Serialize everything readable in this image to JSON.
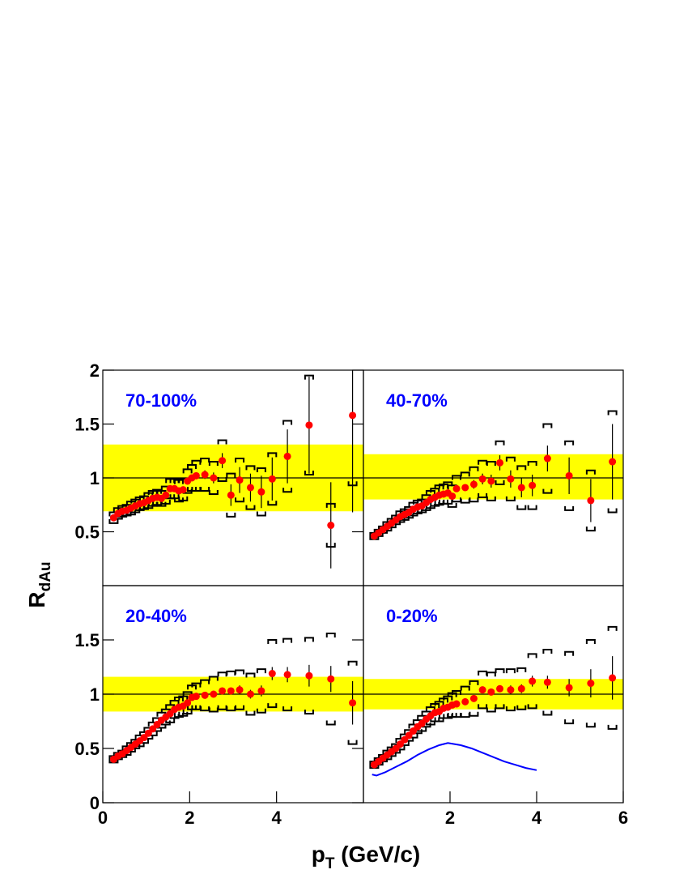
{
  "chart_data": {
    "type": "scatter",
    "x_label": {
      "main": "p",
      "sub": "T",
      "rest": " (GeV/c)"
    },
    "y_label": {
      "main": "R",
      "sub": "dAu"
    },
    "point_color": "#ff0000",
    "band_color": "#ffff00",
    "label_color": "#0000ff",
    "ref_line": 1,
    "panels": [
      {
        "label": "70-100%",
        "xlim": [
          0,
          6
        ],
        "ylim": [
          0,
          2
        ],
        "xticks": [],
        "yticks": [
          0.5,
          1,
          1.5,
          2
        ],
        "band": [
          0.69,
          1.31
        ],
        "x": [
          0.25,
          0.35,
          0.45,
          0.55,
          0.65,
          0.75,
          0.85,
          0.95,
          1.05,
          1.15,
          1.25,
          1.35,
          1.45,
          1.55,
          1.65,
          1.75,
          1.85,
          1.95,
          2.05,
          2.15,
          2.35,
          2.55,
          2.75,
          2.95,
          3.15,
          3.4,
          3.65,
          3.9,
          4.25,
          4.75,
          5.25,
          5.75
        ],
        "values": [
          0.63,
          0.67,
          0.69,
          0.7,
          0.72,
          0.74,
          0.76,
          0.77,
          0.79,
          0.81,
          0.82,
          0.81,
          0.84,
          0.9,
          0.9,
          0.88,
          0.89,
          0.97,
          1.0,
          1.02,
          1.03,
          1.0,
          1.16,
          0.84,
          0.98,
          0.91,
          0.87,
          0.99,
          1.2,
          1.49,
          0.56,
          1.58
        ],
        "stat_errors": [
          0.01,
          0.01,
          0.01,
          0.01,
          0.01,
          0.01,
          0.01,
          0.01,
          0.01,
          0.01,
          0.01,
          0.01,
          0.01,
          0.02,
          0.02,
          0.02,
          0.02,
          0.02,
          0.02,
          0.03,
          0.04,
          0.05,
          0.07,
          0.1,
          0.12,
          0.13,
          0.15,
          0.2,
          0.25,
          0.45,
          0.4,
          0.9
        ],
        "sys_errors": [
          0.05,
          0.05,
          0.05,
          0.05,
          0.06,
          0.06,
          0.06,
          0.06,
          0.07,
          0.07,
          0.07,
          0.07,
          0.08,
          0.09,
          0.09,
          0.1,
          0.1,
          0.11,
          0.12,
          0.14,
          0.15,
          0.15,
          0.19,
          0.2,
          0.2,
          0.2,
          0.22,
          0.24,
          0.33,
          0.46,
          0.2,
          0.65
        ]
      },
      {
        "label": "40-70%",
        "xlim": [
          0,
          6
        ],
        "ylim": [
          0,
          2
        ],
        "xticks": [],
        "yticks": [],
        "band": [
          0.8,
          1.22
        ],
        "x": [
          0.25,
          0.35,
          0.45,
          0.55,
          0.65,
          0.75,
          0.85,
          0.95,
          1.05,
          1.15,
          1.25,
          1.35,
          1.45,
          1.55,
          1.65,
          1.75,
          1.85,
          1.95,
          2.05,
          2.15,
          2.35,
          2.55,
          2.75,
          2.95,
          3.15,
          3.4,
          3.65,
          3.9,
          4.25,
          4.75,
          5.25,
          5.75
        ],
        "values": [
          0.46,
          0.49,
          0.52,
          0.55,
          0.58,
          0.61,
          0.64,
          0.66,
          0.68,
          0.71,
          0.73,
          0.74,
          0.77,
          0.8,
          0.82,
          0.84,
          0.85,
          0.86,
          0.83,
          0.9,
          0.91,
          0.94,
          0.99,
          0.97,
          1.14,
          0.99,
          0.91,
          0.93,
          1.18,
          1.02,
          0.79,
          1.15
        ],
        "stat_errors": [
          0.01,
          0.01,
          0.01,
          0.01,
          0.01,
          0.01,
          0.01,
          0.01,
          0.01,
          0.01,
          0.01,
          0.01,
          0.01,
          0.01,
          0.01,
          0.01,
          0.01,
          0.01,
          0.02,
          0.02,
          0.03,
          0.04,
          0.05,
          0.06,
          0.07,
          0.08,
          0.09,
          0.1,
          0.12,
          0.17,
          0.2,
          0.35
        ],
        "sys_errors": [
          0.03,
          0.03,
          0.03,
          0.04,
          0.04,
          0.04,
          0.05,
          0.05,
          0.05,
          0.06,
          0.06,
          0.06,
          0.07,
          0.08,
          0.08,
          0.09,
          0.09,
          0.1,
          0.1,
          0.12,
          0.14,
          0.16,
          0.17,
          0.18,
          0.2,
          0.2,
          0.2,
          0.22,
          0.32,
          0.32,
          0.28,
          0.47
        ]
      },
      {
        "label": "20-40%",
        "xlim": [
          0,
          6
        ],
        "ylim": [
          0,
          2
        ],
        "xticks": [
          0,
          2,
          4
        ],
        "yticks": [
          0,
          0.5,
          1,
          1.5
        ],
        "band": [
          0.84,
          1.16
        ],
        "x": [
          0.25,
          0.35,
          0.45,
          0.55,
          0.65,
          0.75,
          0.85,
          0.95,
          1.05,
          1.15,
          1.25,
          1.35,
          1.45,
          1.55,
          1.65,
          1.75,
          1.85,
          1.95,
          2.05,
          2.15,
          2.35,
          2.55,
          2.75,
          2.95,
          3.15,
          3.4,
          3.65,
          3.9,
          4.25,
          4.75,
          5.25,
          5.75
        ],
        "values": [
          0.4,
          0.43,
          0.45,
          0.48,
          0.51,
          0.54,
          0.57,
          0.6,
          0.64,
          0.68,
          0.72,
          0.76,
          0.79,
          0.82,
          0.86,
          0.88,
          0.89,
          0.92,
          0.97,
          0.98,
          0.99,
          1.0,
          1.03,
          1.03,
          1.04,
          1.0,
          1.03,
          1.19,
          1.18,
          1.17,
          1.14,
          0.92
        ],
        "stat_errors": [
          0.01,
          0.01,
          0.01,
          0.01,
          0.01,
          0.01,
          0.01,
          0.01,
          0.01,
          0.01,
          0.01,
          0.01,
          0.01,
          0.01,
          0.01,
          0.01,
          0.01,
          0.01,
          0.01,
          0.01,
          0.02,
          0.02,
          0.03,
          0.03,
          0.04,
          0.04,
          0.05,
          0.06,
          0.07,
          0.1,
          0.12,
          0.2
        ],
        "sys_errors": [
          0.03,
          0.03,
          0.03,
          0.04,
          0.04,
          0.04,
          0.05,
          0.05,
          0.05,
          0.06,
          0.06,
          0.07,
          0.07,
          0.08,
          0.08,
          0.09,
          0.09,
          0.1,
          0.11,
          0.12,
          0.14,
          0.16,
          0.17,
          0.18,
          0.18,
          0.19,
          0.2,
          0.31,
          0.33,
          0.35,
          0.42,
          0.38
        ]
      },
      {
        "label": "0-20%",
        "xlim": [
          0,
          6
        ],
        "ylim": [
          0,
          2
        ],
        "xticks": [
          2,
          4,
          6
        ],
        "yticks": [],
        "band": [
          0.86,
          1.14
        ],
        "x": [
          0.25,
          0.35,
          0.45,
          0.55,
          0.65,
          0.75,
          0.85,
          0.95,
          1.05,
          1.15,
          1.25,
          1.35,
          1.45,
          1.55,
          1.65,
          1.75,
          1.85,
          1.95,
          2.05,
          2.15,
          2.35,
          2.55,
          2.75,
          2.95,
          3.15,
          3.4,
          3.65,
          3.9,
          4.25,
          4.75,
          5.25,
          5.75
        ],
        "values": [
          0.35,
          0.38,
          0.41,
          0.44,
          0.47,
          0.5,
          0.54,
          0.58,
          0.62,
          0.66,
          0.7,
          0.73,
          0.77,
          0.8,
          0.83,
          0.84,
          0.87,
          0.88,
          0.9,
          0.91,
          0.93,
          0.96,
          1.04,
          1.02,
          1.05,
          1.04,
          1.05,
          1.12,
          1.11,
          1.06,
          1.1,
          1.15
        ],
        "stat_errors": [
          0.01,
          0.01,
          0.01,
          0.01,
          0.01,
          0.01,
          0.01,
          0.01,
          0.01,
          0.01,
          0.01,
          0.01,
          0.01,
          0.01,
          0.01,
          0.01,
          0.01,
          0.01,
          0.01,
          0.01,
          0.02,
          0.02,
          0.02,
          0.03,
          0.03,
          0.04,
          0.04,
          0.05,
          0.06,
          0.08,
          0.13,
          0.2
        ],
        "sys_errors": [
          0.03,
          0.03,
          0.03,
          0.04,
          0.04,
          0.04,
          0.05,
          0.05,
          0.05,
          0.06,
          0.06,
          0.07,
          0.07,
          0.08,
          0.08,
          0.09,
          0.09,
          0.1,
          0.11,
          0.12,
          0.14,
          0.16,
          0.17,
          0.18,
          0.18,
          0.19,
          0.19,
          0.25,
          0.3,
          0.33,
          0.4,
          0.47
        ],
        "curve": {
          "color": "#0000ff",
          "x": [
            0.2,
            0.3,
            0.5,
            0.75,
            1.0,
            1.25,
            1.5,
            1.75,
            1.95,
            2.25,
            2.5,
            2.75,
            3.0,
            3.25,
            3.5,
            3.75,
            4.0
          ],
          "values": [
            0.26,
            0.25,
            0.28,
            0.33,
            0.38,
            0.44,
            0.49,
            0.53,
            0.55,
            0.53,
            0.5,
            0.46,
            0.42,
            0.38,
            0.35,
            0.32,
            0.3
          ]
        }
      }
    ]
  }
}
